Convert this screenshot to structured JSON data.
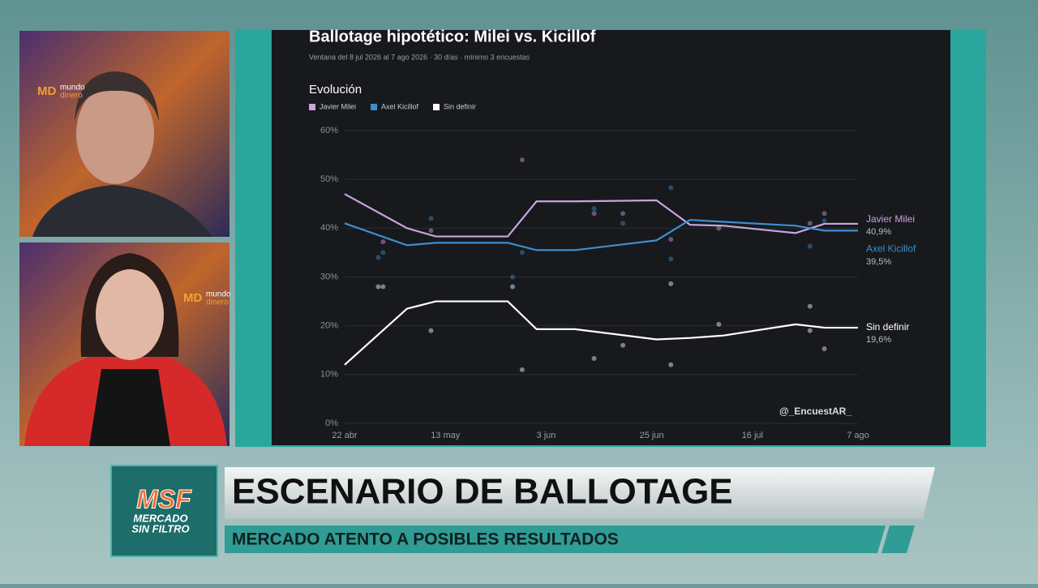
{
  "chart_data": {
    "type": "line",
    "title": "Ballotage hipotético: Milei vs. Kicillof",
    "subtitle": "Ventana del 8 jul 2026 al 7 ago 2026 · 30 días · mínimo 3 encuestas",
    "section_title": "Evolución",
    "watermark": "@_EncuestAR_",
    "x": [
      "22 abr",
      "5 may",
      "11 may",
      "26 may",
      "1 jun",
      "9 jun",
      "26 jun",
      "3 jul",
      "10 jul",
      "25 jul",
      "31 jul",
      "7 ago"
    ],
    "xlim": [
      "22 abr",
      "7 ago"
    ],
    "xticks": [
      "22 abr",
      "13 may",
      "3 jun",
      "25 jun",
      "16 jul",
      "7 ago"
    ],
    "ylim": [
      0,
      60
    ],
    "yticks": [
      {
        "value": 0,
        "label": "0%"
      },
      {
        "value": 10,
        "label": "10%"
      },
      {
        "value": 20,
        "label": "20%"
      },
      {
        "value": 30,
        "label": "30%"
      },
      {
        "value": 40,
        "label": "40%"
      },
      {
        "value": 50,
        "label": "50%"
      },
      {
        "value": 60,
        "label": "60%"
      }
    ],
    "grid": true,
    "series": [
      {
        "name": "Javier Milei",
        "color": "#c9a3de",
        "values": [
          47,
          40,
          38.3,
          38.3,
          45.5,
          45.5,
          45.7,
          40.7,
          40.5,
          39,
          40.9,
          40.9
        ],
        "value_labels": [
          null,
          null,
          null,
          null,
          null,
          null,
          null,
          null,
          null,
          null,
          null,
          "40,9%"
        ],
        "points": {
          "x": [
            "30 abr",
            "10 may",
            "29 may",
            "13 jun",
            "19 jun",
            "29 jun",
            "9 jul",
            "28 jul",
            "31 jul"
          ],
          "values": [
            37.2,
            39.5,
            54,
            43,
            43,
            37.7,
            40,
            41,
            43
          ]
        }
      },
      {
        "name": "Axel Kicillof",
        "color": "#3b8fd0",
        "values": [
          41,
          36.5,
          37,
          37,
          35.5,
          35.5,
          37.5,
          41.7,
          41.3,
          40.5,
          39.5,
          39.5
        ],
        "value_labels": [
          null,
          null,
          null,
          null,
          null,
          null,
          null,
          null,
          null,
          null,
          null,
          "39,5%"
        ],
        "points": {
          "x": [
            "29 abr",
            "30 abr",
            "10 may",
            "27 may",
            "29 may",
            "13 jun",
            "19 jun",
            "29 jun",
            "29 jun",
            "28 jul",
            "31 jul"
          ],
          "values": [
            34,
            35,
            42,
            30,
            35,
            44,
            41,
            48.3,
            33.7,
            36.3,
            41.5
          ]
        }
      },
      {
        "name": "Sin definir",
        "color": "#ffffff",
        "values": [
          12,
          23.5,
          25,
          25,
          19.3,
          19.3,
          17.2,
          17.5,
          18,
          20.3,
          19.6,
          19.6
        ],
        "value_labels": [
          null,
          null,
          null,
          null,
          null,
          null,
          null,
          null,
          null,
          null,
          null,
          "19,6%"
        ],
        "points": {
          "x": [
            "29 abr",
            "30 abr",
            "10 may",
            "27 may",
            "29 may",
            "13 jun",
            "19 jun",
            "29 jun",
            "29 jun",
            "9 jul",
            "28 jul",
            "28 jul",
            "31 jul"
          ],
          "values": [
            28,
            28,
            19,
            28,
            11,
            13.3,
            16,
            12,
            28.6,
            20.3,
            24,
            19,
            15.3
          ]
        }
      }
    ]
  },
  "tiles": [
    {
      "logo": "MD",
      "brand_top": "mundo",
      "brand_bottom": "dinero"
    },
    {
      "logo": "MD",
      "brand_top": "mundo",
      "brand_bottom": "dinero"
    }
  ],
  "lower_third": {
    "logo": "MSF",
    "logo_line1": "MERCADO",
    "logo_line2": "SIN FILTRO",
    "headline": "ESCENARIO DE BALLOTAGE",
    "subheadline": "MERCADO ATENTO A POSIBLES RESULTADOS"
  }
}
